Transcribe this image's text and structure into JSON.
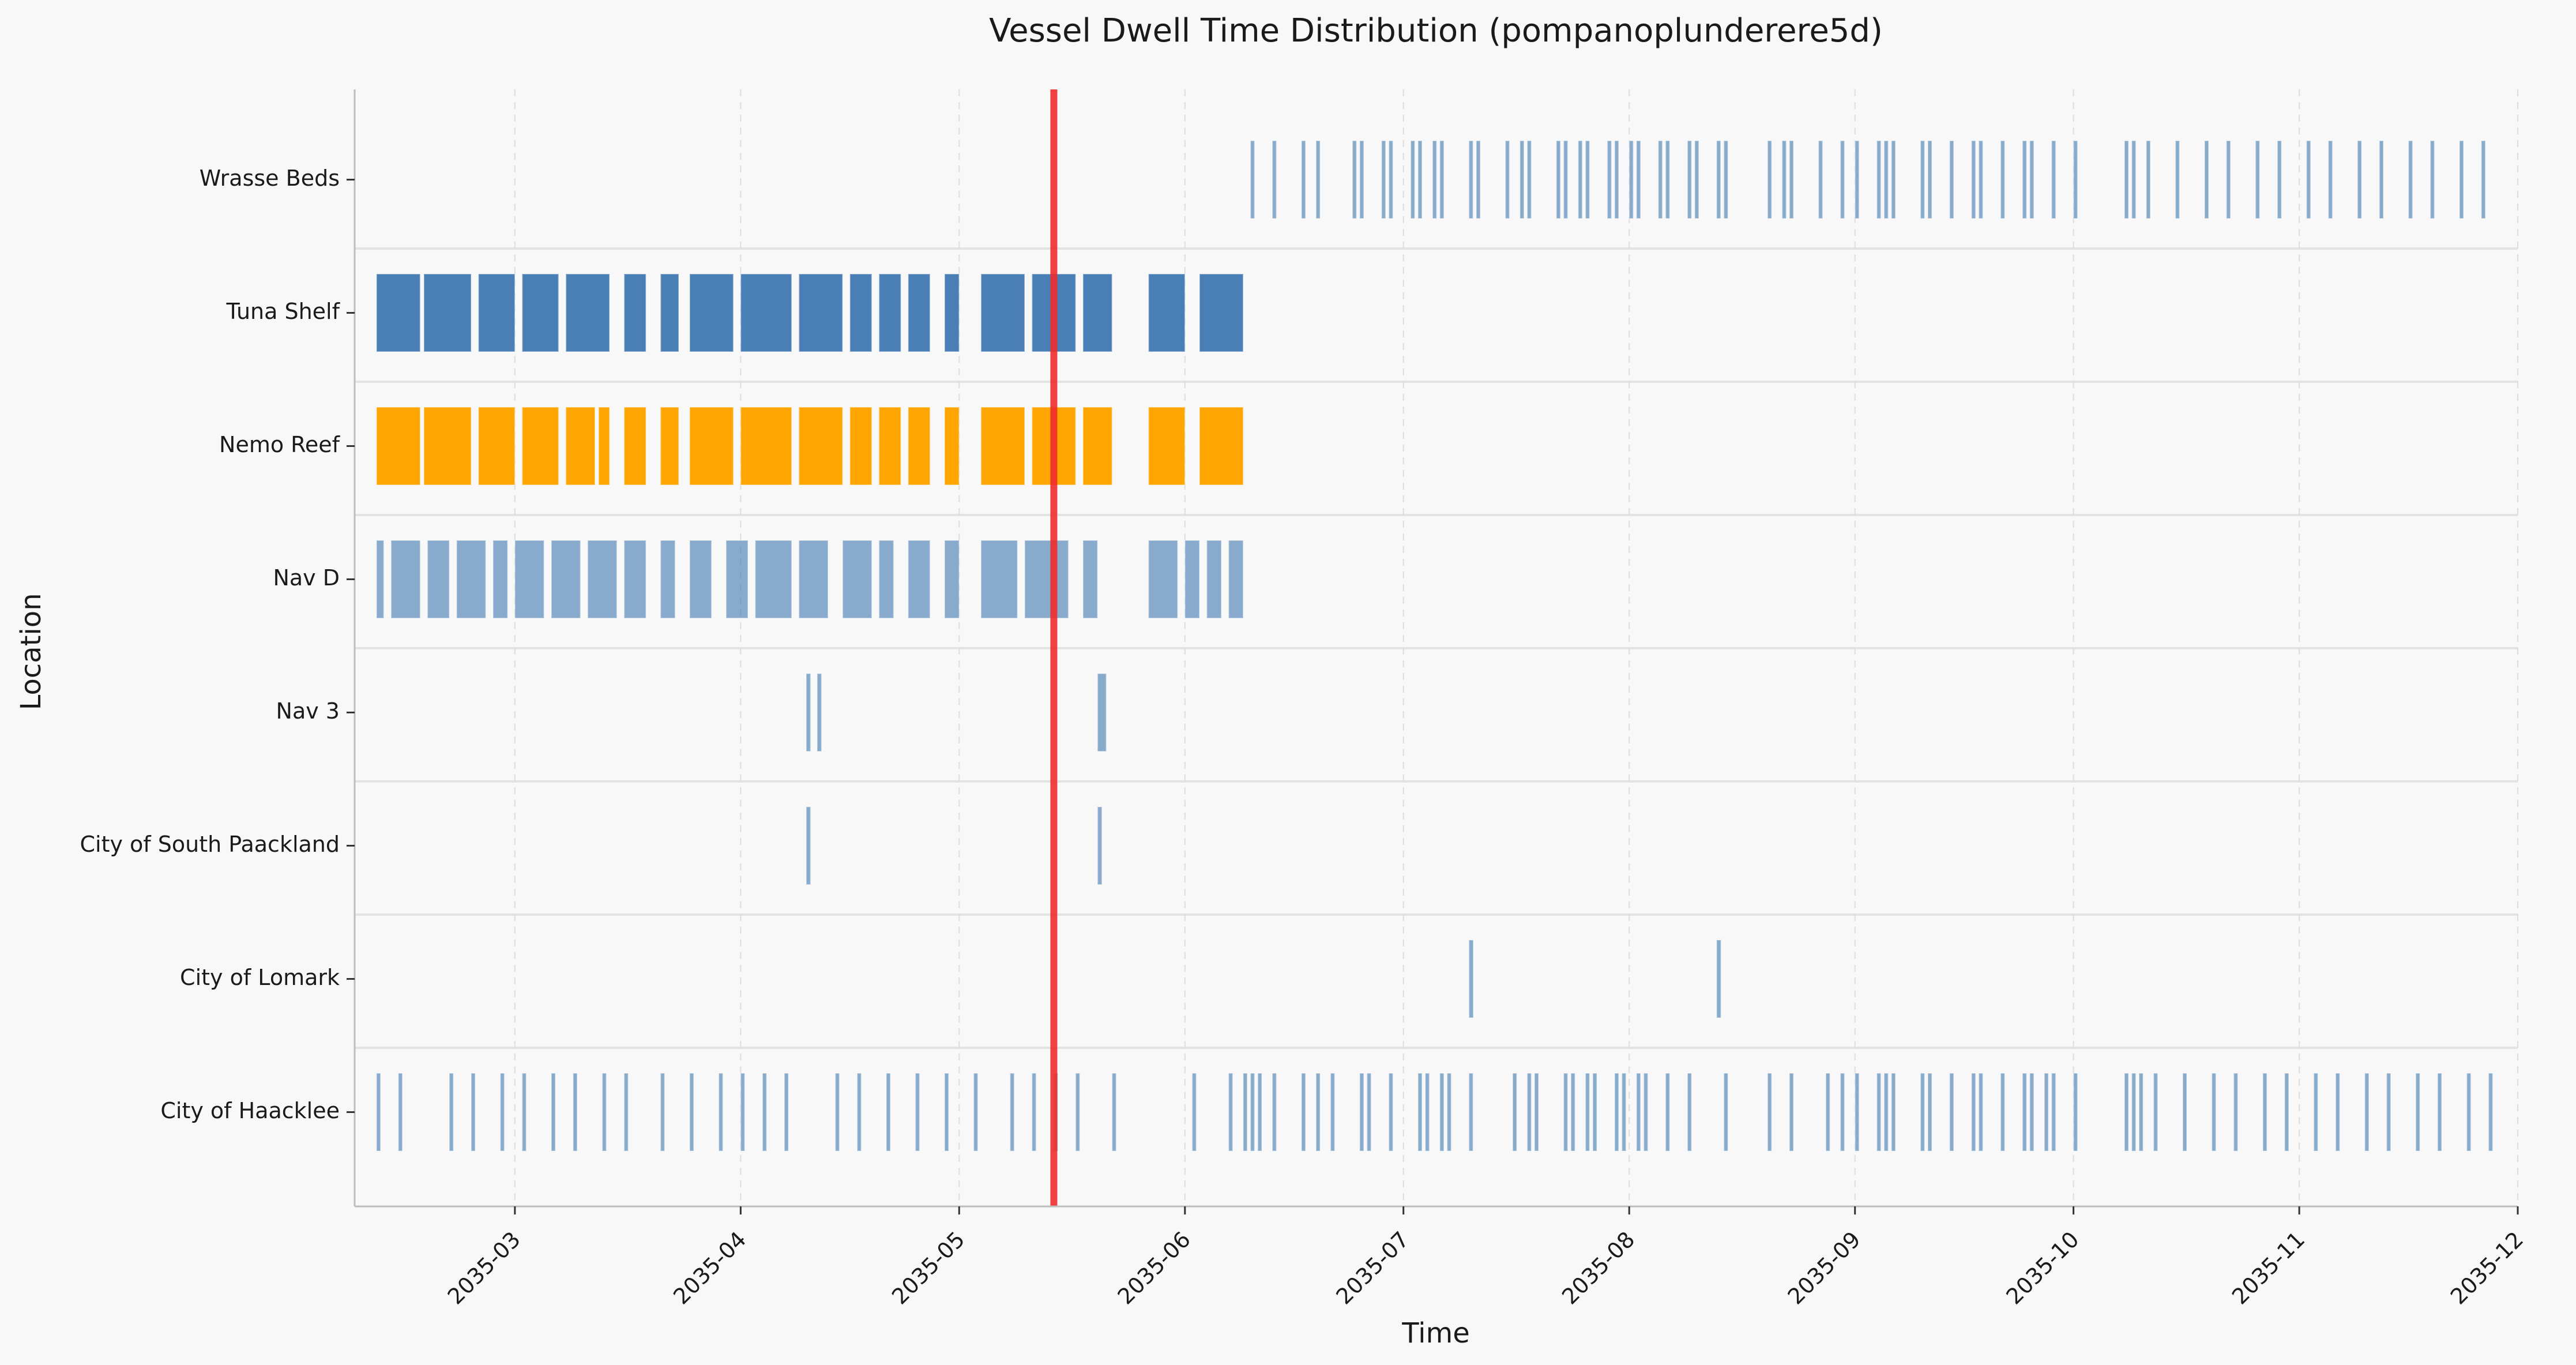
{
  "chart_data": {
    "type": "timeline",
    "title": "Vessel Dwell Time Distribution (pompanoplunderere5d)",
    "xlabel": "Time",
    "ylabel": "Location",
    "x_range": [
      "2035-02-07",
      "2035-12-01"
    ],
    "x_ticks": [
      "2035-03",
      "2035-04",
      "2035-05",
      "2035-06",
      "2035-07",
      "2035-08",
      "2035-09",
      "2035-10",
      "2035-11",
      "2035-12"
    ],
    "grid": true,
    "marker_line": {
      "date": "2035-05-14",
      "color": "#ee2b2b"
    },
    "colors": {
      "light_blue": "#87abcb",
      "dark_blue": "#4a7fb5",
      "orange": "#ffa500"
    },
    "categories": [
      "Wrasse Beds",
      "Tuna Shelf",
      "Nemo Reef",
      "Nav D",
      "Nav 3",
      "City of South Paackland",
      "City of Lomark",
      "City of Haacklee"
    ],
    "series": [
      {
        "category": "Wrasse Beds",
        "color_key": "light_blue",
        "intervals": [
          [
            "2035-06-10",
            "2035-06-10.5"
          ],
          [
            "2035-06-13",
            "2035-06-13.5"
          ],
          [
            "2035-06-17",
            "2035-06-17.5"
          ],
          [
            "2035-06-19",
            "2035-06-19.5"
          ],
          [
            "2035-06-24",
            "2035-06-24.5"
          ],
          [
            "2035-06-25",
            "2035-06-25.5"
          ],
          [
            "2035-06-28",
            "2035-06-28.5"
          ],
          [
            "2035-06-29",
            "2035-06-29.5"
          ],
          [
            "2035-07-02",
            "2035-07-02.5"
          ],
          [
            "2035-07-03",
            "2035-07-03.5"
          ],
          [
            "2035-07-05",
            "2035-07-05.5"
          ],
          [
            "2035-07-06",
            "2035-07-06.5"
          ],
          [
            "2035-07-10",
            "2035-07-10.5"
          ],
          [
            "2035-07-11",
            "2035-07-11.5"
          ],
          [
            "2035-07-15",
            "2035-07-15.5"
          ],
          [
            "2035-07-17",
            "2035-07-17.5"
          ],
          [
            "2035-07-18",
            "2035-07-18.5"
          ],
          [
            "2035-07-22",
            "2035-07-22.5"
          ],
          [
            "2035-07-23",
            "2035-07-23.5"
          ],
          [
            "2035-07-25",
            "2035-07-25.5"
          ],
          [
            "2035-07-26",
            "2035-07-26.5"
          ],
          [
            "2035-07-29",
            "2035-07-29.5"
          ],
          [
            "2035-07-30",
            "2035-07-30.5"
          ],
          [
            "2035-08-01",
            "2035-08-01.5"
          ],
          [
            "2035-08-02",
            "2035-08-02.5"
          ],
          [
            "2035-08-05",
            "2035-08-05.5"
          ],
          [
            "2035-08-06",
            "2035-08-06.5"
          ],
          [
            "2035-08-09",
            "2035-08-09.5"
          ],
          [
            "2035-08-10",
            "2035-08-10.5"
          ],
          [
            "2035-08-13",
            "2035-08-13.5"
          ],
          [
            "2035-08-14",
            "2035-08-14.5"
          ],
          [
            "2035-08-20",
            "2035-08-20.5"
          ],
          [
            "2035-08-22",
            "2035-08-22.5"
          ],
          [
            "2035-08-23",
            "2035-08-23.5"
          ],
          [
            "2035-08-27",
            "2035-08-27.5"
          ],
          [
            "2035-08-30",
            "2035-08-30.5"
          ],
          [
            "2035-09-01",
            "2035-09-01.5"
          ],
          [
            "2035-09-04",
            "2035-09-04.5"
          ],
          [
            "2035-09-05",
            "2035-09-05.5"
          ],
          [
            "2035-09-06",
            "2035-09-06.5"
          ],
          [
            "2035-09-10",
            "2035-09-10.5"
          ],
          [
            "2035-09-11",
            "2035-09-11.5"
          ],
          [
            "2035-09-14",
            "2035-09-14.5"
          ],
          [
            "2035-09-17",
            "2035-09-17.5"
          ],
          [
            "2035-09-18",
            "2035-09-18.5"
          ],
          [
            "2035-09-21",
            "2035-09-21.5"
          ],
          [
            "2035-09-24",
            "2035-09-24.5"
          ],
          [
            "2035-09-25",
            "2035-09-25.5"
          ],
          [
            "2035-09-28",
            "2035-09-28.5"
          ],
          [
            "2035-10-01",
            "2035-10-01.5"
          ],
          [
            "2035-10-08",
            "2035-10-08.5"
          ],
          [
            "2035-10-09",
            "2035-10-09.5"
          ],
          [
            "2035-10-11",
            "2035-10-11.5"
          ],
          [
            "2035-10-15",
            "2035-10-15.5"
          ],
          [
            "2035-10-19",
            "2035-10-19.5"
          ],
          [
            "2035-10-22",
            "2035-10-22.5"
          ],
          [
            "2035-10-26",
            "2035-10-26.5"
          ],
          [
            "2035-10-29",
            "2035-10-29.5"
          ],
          [
            "2035-11-02",
            "2035-11-02.5"
          ],
          [
            "2035-11-05",
            "2035-11-05.5"
          ],
          [
            "2035-11-09",
            "2035-11-09.5"
          ],
          [
            "2035-11-12",
            "2035-11-12.5"
          ],
          [
            "2035-11-16",
            "2035-11-16.5"
          ],
          [
            "2035-11-19",
            "2035-11-19.5"
          ],
          [
            "2035-11-23",
            "2035-11-23.5"
          ],
          [
            "2035-11-26",
            "2035-11-26.5"
          ]
        ]
      },
      {
        "category": "Tuna Shelf",
        "color_key": "dark_blue",
        "intervals": [
          [
            "2035-02-10",
            "2035-02-16"
          ],
          [
            "2035-02-16.5",
            "2035-02-23"
          ],
          [
            "2035-02-24",
            "2035-03-01"
          ],
          [
            "2035-03-02",
            "2035-03-07"
          ],
          [
            "2035-03-08",
            "2035-03-14"
          ],
          [
            "2035-03-16",
            "2035-03-19"
          ],
          [
            "2035-03-21",
            "2035-03-23.5"
          ],
          [
            "2035-03-25",
            "2035-03-31"
          ],
          [
            "2035-04-01",
            "2035-04-08"
          ],
          [
            "2035-04-09",
            "2035-04-15"
          ],
          [
            "2035-04-16",
            "2035-04-19"
          ],
          [
            "2035-04-20",
            "2035-04-23"
          ],
          [
            "2035-04-24",
            "2035-04-27"
          ],
          [
            "2035-04-29",
            "2035-05-01"
          ],
          [
            "2035-05-04",
            "2035-05-10"
          ],
          [
            "2035-05-11",
            "2035-05-17"
          ],
          [
            "2035-05-18",
            "2035-05-22"
          ],
          [
            "2035-05-27",
            "2035-06-01"
          ],
          [
            "2035-06-03",
            "2035-06-09"
          ]
        ]
      },
      {
        "category": "Nemo Reef",
        "color_key": "orange",
        "intervals": [
          [
            "2035-02-10",
            "2035-02-16"
          ],
          [
            "2035-02-16.5",
            "2035-02-23"
          ],
          [
            "2035-02-24",
            "2035-03-01"
          ],
          [
            "2035-03-02",
            "2035-03-07"
          ],
          [
            "2035-03-08",
            "2035-03-12"
          ],
          [
            "2035-03-12.5",
            "2035-03-14"
          ],
          [
            "2035-03-16",
            "2035-03-19"
          ],
          [
            "2035-03-21",
            "2035-03-23.5"
          ],
          [
            "2035-03-25",
            "2035-03-31"
          ],
          [
            "2035-04-01",
            "2035-04-08"
          ],
          [
            "2035-04-09",
            "2035-04-15"
          ],
          [
            "2035-04-16",
            "2035-04-19"
          ],
          [
            "2035-04-20",
            "2035-04-23"
          ],
          [
            "2035-04-24",
            "2035-04-27"
          ],
          [
            "2035-04-29",
            "2035-05-01"
          ],
          [
            "2035-05-04",
            "2035-05-10"
          ],
          [
            "2035-05-11",
            "2035-05-17"
          ],
          [
            "2035-05-18",
            "2035-05-22"
          ],
          [
            "2035-05-27",
            "2035-06-01"
          ],
          [
            "2035-06-03",
            "2035-06-09"
          ]
        ]
      },
      {
        "category": "Nav D",
        "color_key": "dark_blue",
        "alpha": 0.65,
        "intervals": [
          [
            "2035-02-10",
            "2035-02-11"
          ],
          [
            "2035-02-12",
            "2035-02-16"
          ],
          [
            "2035-02-17",
            "2035-02-20"
          ],
          [
            "2035-02-21",
            "2035-02-25"
          ],
          [
            "2035-02-26",
            "2035-02-28"
          ],
          [
            "2035-03-01",
            "2035-03-05"
          ],
          [
            "2035-03-06",
            "2035-03-10"
          ],
          [
            "2035-03-11",
            "2035-03-15"
          ],
          [
            "2035-03-16",
            "2035-03-19"
          ],
          [
            "2035-03-21",
            "2035-03-23"
          ],
          [
            "2035-03-25",
            "2035-03-28"
          ],
          [
            "2035-03-30",
            "2035-04-02"
          ],
          [
            "2035-04-03",
            "2035-04-08"
          ],
          [
            "2035-04-09",
            "2035-04-13"
          ],
          [
            "2035-04-15",
            "2035-04-19"
          ],
          [
            "2035-04-20",
            "2035-04-22"
          ],
          [
            "2035-04-24",
            "2035-04-27"
          ],
          [
            "2035-04-29",
            "2035-05-01"
          ],
          [
            "2035-05-04",
            "2035-05-09"
          ],
          [
            "2035-05-10",
            "2035-05-16"
          ],
          [
            "2035-05-18",
            "2035-05-20"
          ],
          [
            "2035-05-27",
            "2035-05-31"
          ],
          [
            "2035-06-01",
            "2035-06-03"
          ],
          [
            "2035-06-04",
            "2035-06-06"
          ],
          [
            "2035-06-07",
            "2035-06-09"
          ]
        ]
      },
      {
        "category": "Nav 3",
        "color_key": "light_blue",
        "intervals": [
          [
            "2035-04-10",
            "2035-04-10.6"
          ],
          [
            "2035-04-11.5",
            "2035-04-12.1"
          ],
          [
            "2035-05-20",
            "2035-05-21.2"
          ]
        ]
      },
      {
        "category": "City of South Paackland",
        "color_key": "light_blue",
        "intervals": [
          [
            "2035-04-10",
            "2035-04-10.6"
          ],
          [
            "2035-05-20",
            "2035-05-20.6"
          ]
        ]
      },
      {
        "category": "City of Lomark",
        "color_key": "light_blue",
        "intervals": [
          [
            "2035-07-10",
            "2035-07-10.6"
          ],
          [
            "2035-08-13",
            "2035-08-13.6"
          ]
        ]
      },
      {
        "category": "City of Haacklee",
        "color_key": "light_blue",
        "intervals": [
          [
            "2035-02-10",
            "2035-02-10.5"
          ],
          [
            "2035-02-13",
            "2035-02-13.5"
          ],
          [
            "2035-02-20",
            "2035-02-20.5"
          ],
          [
            "2035-02-23",
            "2035-02-23.5"
          ],
          [
            "2035-02-27",
            "2035-02-27.5"
          ],
          [
            "2035-03-02",
            "2035-03-02.5"
          ],
          [
            "2035-03-06",
            "2035-03-06.5"
          ],
          [
            "2035-03-09",
            "2035-03-09.5"
          ],
          [
            "2035-03-13",
            "2035-03-13.5"
          ],
          [
            "2035-03-16",
            "2035-03-16.5"
          ],
          [
            "2035-03-21",
            "2035-03-21.5"
          ],
          [
            "2035-03-25",
            "2035-03-25.5"
          ],
          [
            "2035-03-29",
            "2035-03-29.5"
          ],
          [
            "2035-04-01",
            "2035-04-01.5"
          ],
          [
            "2035-04-04",
            "2035-04-04.5"
          ],
          [
            "2035-04-07",
            "2035-04-07.5"
          ],
          [
            "2035-04-14",
            "2035-04-14.5"
          ],
          [
            "2035-04-17",
            "2035-04-17.5"
          ],
          [
            "2035-04-21",
            "2035-04-21.5"
          ],
          [
            "2035-04-25",
            "2035-04-25.5"
          ],
          [
            "2035-04-29",
            "2035-04-29.5"
          ],
          [
            "2035-05-03",
            "2035-05-03.5"
          ],
          [
            "2035-05-08",
            "2035-05-08.5"
          ],
          [
            "2035-05-11",
            "2035-05-11.5"
          ],
          [
            "2035-05-14",
            "2035-05-14.5"
          ],
          [
            "2035-05-17",
            "2035-05-17.5"
          ],
          [
            "2035-05-22",
            "2035-05-22.5"
          ],
          [
            "2035-06-02",
            "2035-06-02.5"
          ],
          [
            "2035-06-07",
            "2035-06-07.5"
          ],
          [
            "2035-06-09",
            "2035-06-09.5"
          ],
          [
            "2035-06-10",
            "2035-06-10.5"
          ],
          [
            "2035-06-11",
            "2035-06-11.5"
          ],
          [
            "2035-06-13",
            "2035-06-13.5"
          ],
          [
            "2035-06-17",
            "2035-06-17.5"
          ],
          [
            "2035-06-19",
            "2035-06-19.5"
          ],
          [
            "2035-06-21",
            "2035-06-21.5"
          ],
          [
            "2035-06-25",
            "2035-06-25.5"
          ],
          [
            "2035-06-26",
            "2035-06-26.5"
          ],
          [
            "2035-06-29",
            "2035-06-29.5"
          ],
          [
            "2035-07-03",
            "2035-07-03.5"
          ],
          [
            "2035-07-04",
            "2035-07-04.5"
          ],
          [
            "2035-07-06",
            "2035-07-06.5"
          ],
          [
            "2035-07-07",
            "2035-07-07.5"
          ],
          [
            "2035-07-10",
            "2035-07-10.5"
          ],
          [
            "2035-07-16",
            "2035-07-16.5"
          ],
          [
            "2035-07-18",
            "2035-07-18.5"
          ],
          [
            "2035-07-19",
            "2035-07-19.5"
          ],
          [
            "2035-07-23",
            "2035-07-23.5"
          ],
          [
            "2035-07-24",
            "2035-07-24.5"
          ],
          [
            "2035-07-26",
            "2035-07-26.5"
          ],
          [
            "2035-07-27",
            "2035-07-27.5"
          ],
          [
            "2035-07-30",
            "2035-07-30.5"
          ],
          [
            "2035-07-31",
            "2035-07-31.5"
          ],
          [
            "2035-08-02",
            "2035-08-02.5"
          ],
          [
            "2035-08-03",
            "2035-08-03.5"
          ],
          [
            "2035-08-06",
            "2035-08-06.5"
          ],
          [
            "2035-08-09",
            "2035-08-09.5"
          ],
          [
            "2035-08-14",
            "2035-08-14.5"
          ],
          [
            "2035-08-20",
            "2035-08-20.5"
          ],
          [
            "2035-08-23",
            "2035-08-23.5"
          ],
          [
            "2035-08-28",
            "2035-08-28.5"
          ],
          [
            "2035-08-30",
            "2035-08-30.5"
          ],
          [
            "2035-09-01",
            "2035-09-01.5"
          ],
          [
            "2035-09-04",
            "2035-09-04.5"
          ],
          [
            "2035-09-05",
            "2035-09-05.5"
          ],
          [
            "2035-09-06",
            "2035-09-06.5"
          ],
          [
            "2035-09-10",
            "2035-09-10.5"
          ],
          [
            "2035-09-11",
            "2035-09-11.5"
          ],
          [
            "2035-09-14",
            "2035-09-14.5"
          ],
          [
            "2035-09-17",
            "2035-09-17.5"
          ],
          [
            "2035-09-18",
            "2035-09-18.5"
          ],
          [
            "2035-09-21",
            "2035-09-21.5"
          ],
          [
            "2035-09-24",
            "2035-09-24.5"
          ],
          [
            "2035-09-25",
            "2035-09-25.5"
          ],
          [
            "2035-09-27",
            "2035-09-27.5"
          ],
          [
            "2035-09-28",
            "2035-09-28.5"
          ],
          [
            "2035-10-01",
            "2035-10-01.5"
          ],
          [
            "2035-10-08",
            "2035-10-08.5"
          ],
          [
            "2035-10-09",
            "2035-10-09.5"
          ],
          [
            "2035-10-10",
            "2035-10-10.5"
          ],
          [
            "2035-10-12",
            "2035-10-12.5"
          ],
          [
            "2035-10-16",
            "2035-10-16.5"
          ],
          [
            "2035-10-20",
            "2035-10-20.5"
          ],
          [
            "2035-10-23",
            "2035-10-23.5"
          ],
          [
            "2035-10-27",
            "2035-10-27.5"
          ],
          [
            "2035-10-30",
            "2035-10-30.5"
          ],
          [
            "2035-11-03",
            "2035-11-03.5"
          ],
          [
            "2035-11-06",
            "2035-11-06.5"
          ],
          [
            "2035-11-10",
            "2035-11-10.5"
          ],
          [
            "2035-11-13",
            "2035-11-13.5"
          ],
          [
            "2035-11-17",
            "2035-11-17.5"
          ],
          [
            "2035-11-20",
            "2035-11-20.5"
          ],
          [
            "2035-11-24",
            "2035-11-24.5"
          ],
          [
            "2035-11-27",
            "2035-11-27.5"
          ]
        ]
      }
    ]
  }
}
